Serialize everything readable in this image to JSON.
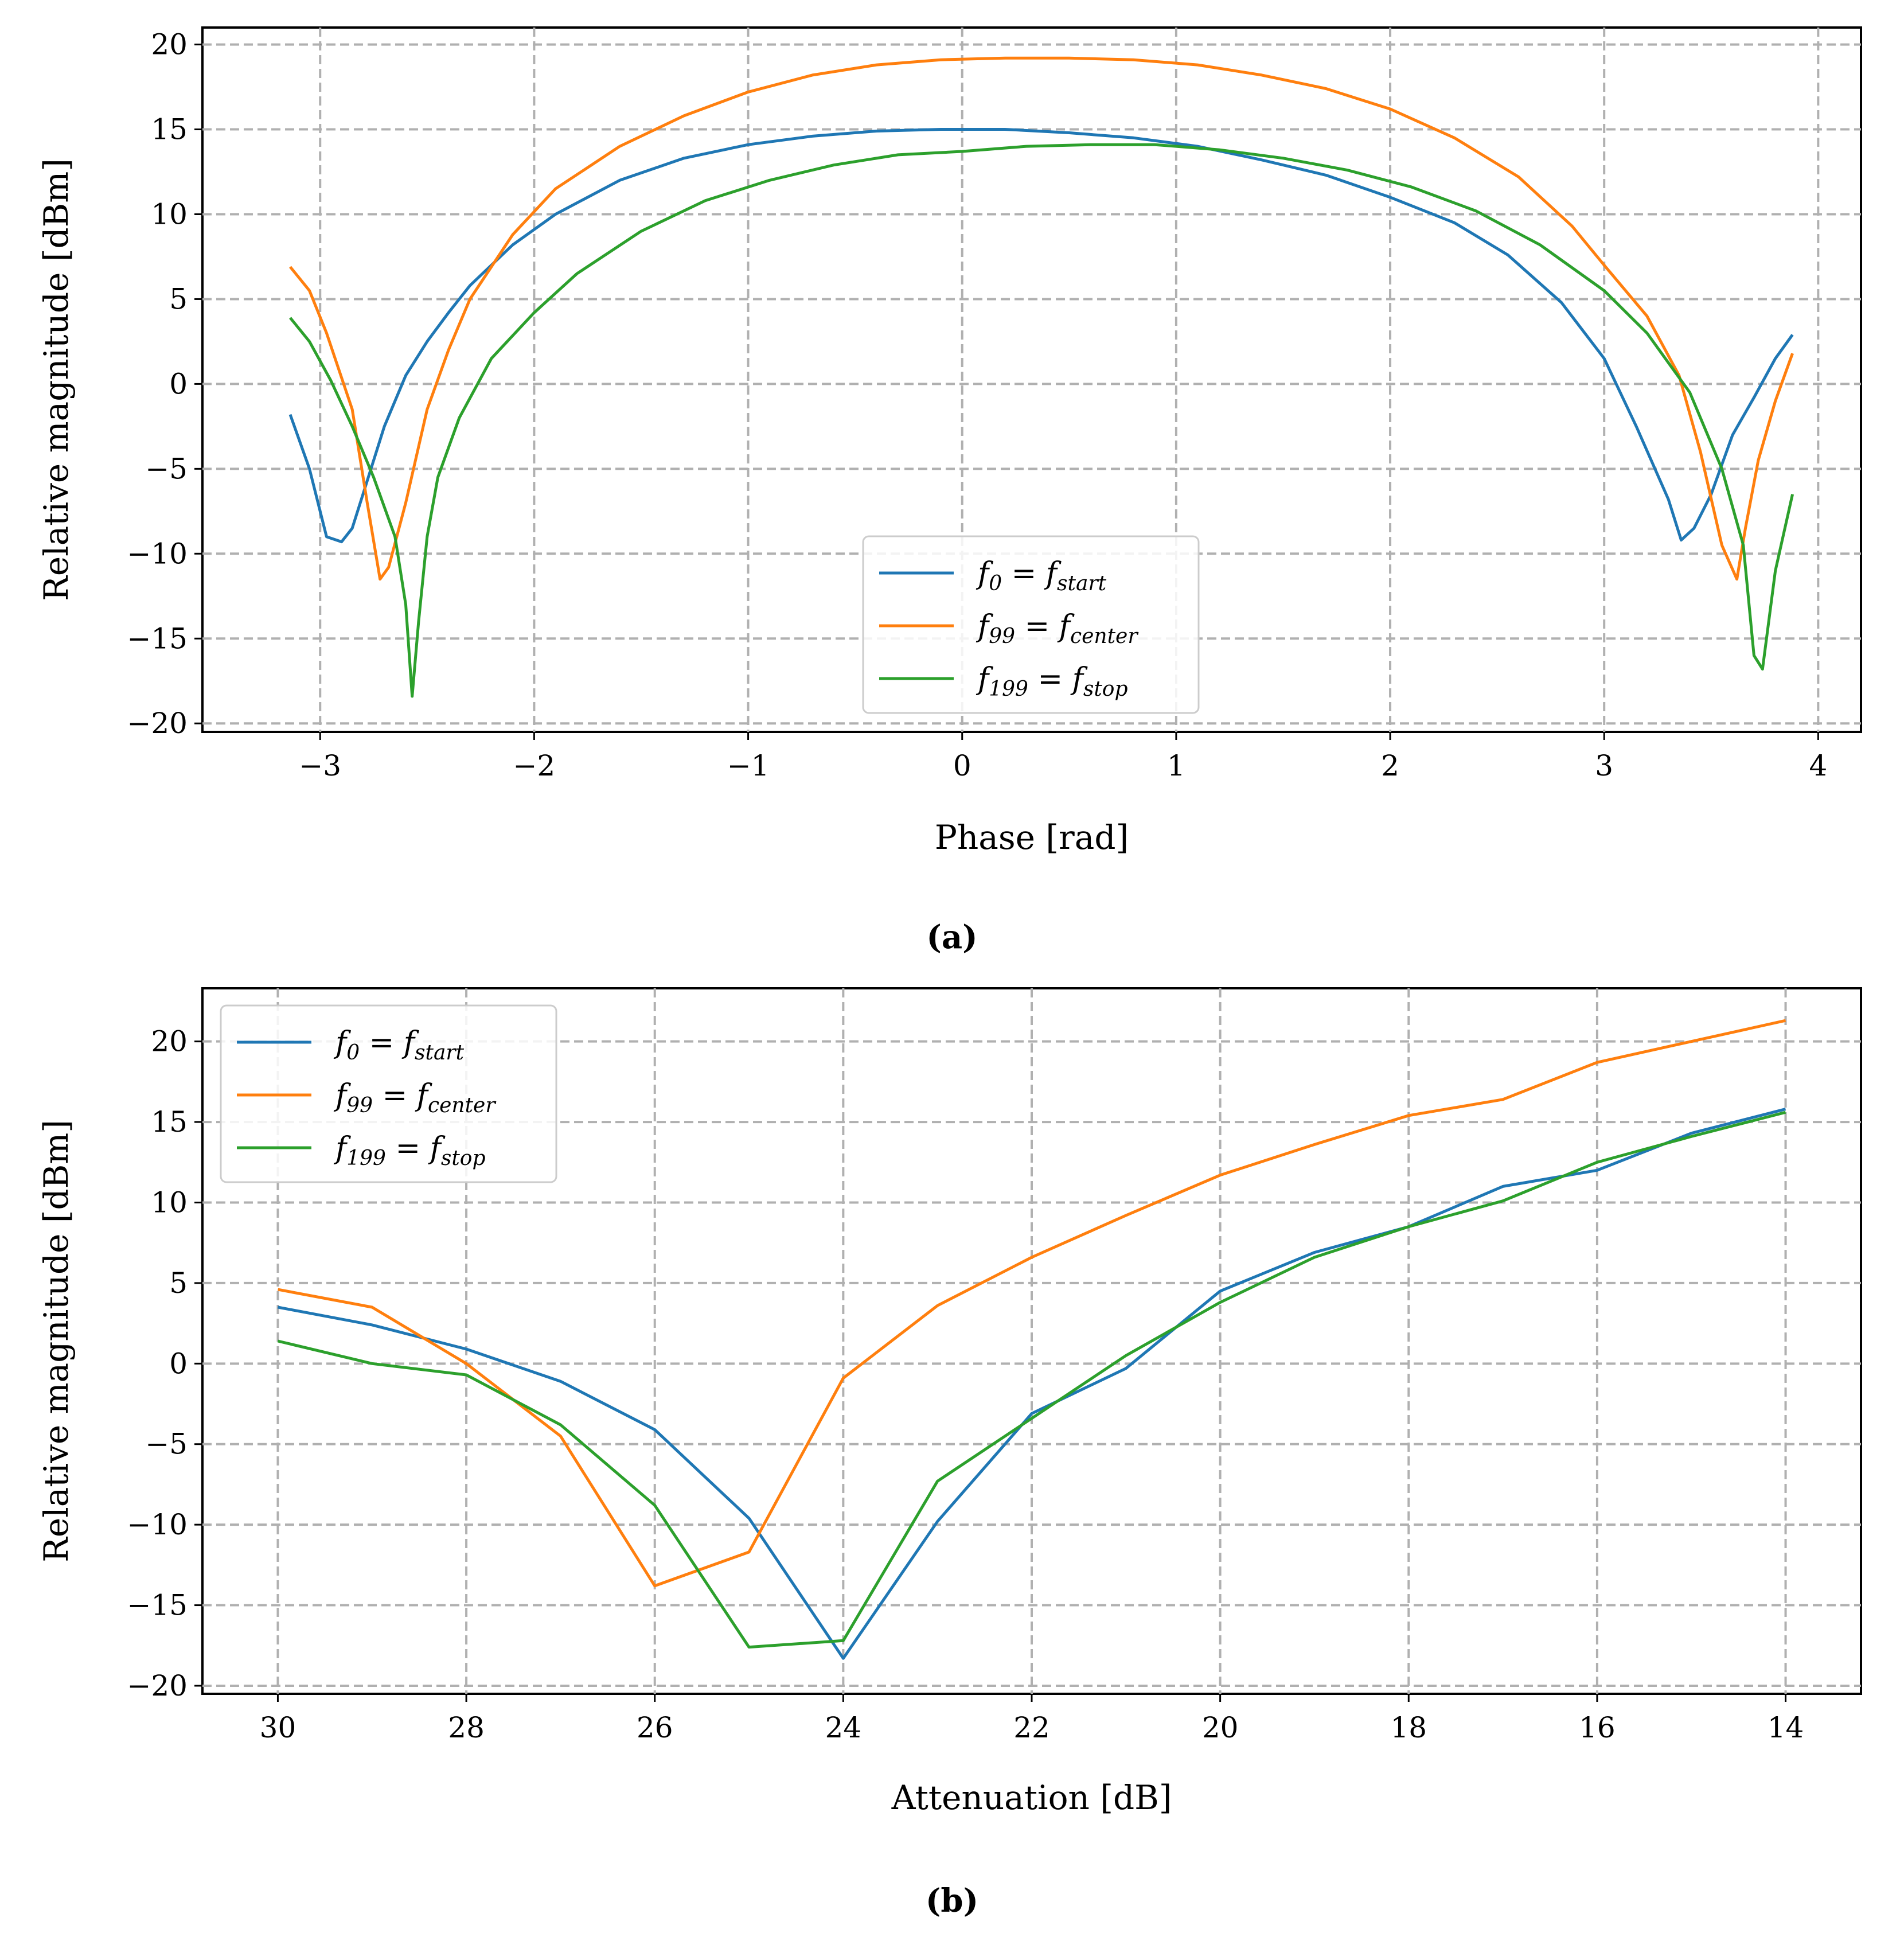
{
  "colors": {
    "f0": "#1f77b4",
    "f99": "#ff7f0e",
    "f199": "#2ca02c",
    "grid": "#b0b0b0"
  },
  "chart_data": [
    {
      "id": "a",
      "type": "line",
      "caption": "(a)",
      "xlabel": "Phase [rad]",
      "ylabel": "Relative magnitude [dBm]",
      "xlim": [
        -3.55,
        4.2
      ],
      "ylim": [
        -20.5,
        21
      ],
      "xticks": [
        -3,
        -2,
        -1,
        0,
        1,
        2,
        3,
        4
      ],
      "xtick_labels": [
        "−3",
        "−2",
        "−1",
        "0",
        "1",
        "2",
        "3",
        "4"
      ],
      "yticks": [
        -20,
        -15,
        -10,
        -5,
        0,
        5,
        10,
        15,
        20
      ],
      "ytick_labels": [
        "−20",
        "−15",
        "−10",
        "−5",
        "0",
        "5",
        "10",
        "15",
        "20"
      ],
      "grid": true,
      "legend_position": "lower-center",
      "series": [
        {
          "name": "f0 = fstart",
          "label_main": "f",
          "label_sub": "0",
          "label_eq": " = f",
          "label_sub2": "start",
          "color_key": "f0",
          "x": [
            -3.14,
            -3.05,
            -2.97,
            -2.9,
            -2.85,
            -2.8,
            -2.7,
            -2.6,
            -2.5,
            -2.4,
            -2.3,
            -2.1,
            -1.9,
            -1.6,
            -1.3,
            -1.0,
            -0.7,
            -0.4,
            -0.1,
            0.2,
            0.5,
            0.8,
            1.1,
            1.4,
            1.7,
            2.0,
            2.3,
            2.55,
            2.8,
            3.0,
            3.15,
            3.3,
            3.36,
            3.42,
            3.5,
            3.6,
            3.7,
            3.8,
            3.88
          ],
          "y": [
            -1.8,
            -5.0,
            -9.0,
            -9.3,
            -8.5,
            -6.5,
            -2.5,
            0.5,
            2.5,
            4.2,
            5.8,
            8.2,
            10.0,
            12.0,
            13.3,
            14.1,
            14.6,
            14.9,
            15.0,
            15.0,
            14.8,
            14.5,
            14.0,
            13.2,
            12.3,
            11.0,
            9.5,
            7.6,
            4.8,
            1.5,
            -2.5,
            -6.8,
            -9.2,
            -8.5,
            -6.5,
            -3.0,
            -0.8,
            1.5,
            2.9
          ]
        },
        {
          "name": "f99 = fcenter",
          "label_main": "f",
          "label_sub": "99",
          "label_eq": " = f",
          "label_sub2": "center",
          "color_key": "f99",
          "x": [
            -3.14,
            -3.05,
            -2.97,
            -2.85,
            -2.78,
            -2.72,
            -2.68,
            -2.6,
            -2.5,
            -2.4,
            -2.3,
            -2.1,
            -1.9,
            -1.6,
            -1.3,
            -1.0,
            -0.7,
            -0.4,
            -0.1,
            0.2,
            0.5,
            0.8,
            1.1,
            1.4,
            1.7,
            2.0,
            2.3,
            2.6,
            2.85,
            3.0,
            3.2,
            3.35,
            3.45,
            3.55,
            3.62,
            3.66,
            3.72,
            3.8,
            3.88
          ],
          "y": [
            6.9,
            5.5,
            3.0,
            -1.5,
            -7.0,
            -11.5,
            -10.8,
            -7.0,
            -1.5,
            2.0,
            5.0,
            8.8,
            11.5,
            14.0,
            15.8,
            17.2,
            18.2,
            18.8,
            19.1,
            19.2,
            19.2,
            19.1,
            18.8,
            18.2,
            17.4,
            16.2,
            14.5,
            12.2,
            9.3,
            7.0,
            4.0,
            0.5,
            -4.0,
            -9.5,
            -11.5,
            -8.5,
            -4.5,
            -1.0,
            1.8
          ]
        },
        {
          "name": "f199 = fstop",
          "label_main": "f",
          "label_sub": "199",
          "label_eq": " = f",
          "label_sub2": "stop",
          "color_key": "f199",
          "x": [
            -3.14,
            -3.05,
            -2.95,
            -2.85,
            -2.75,
            -2.65,
            -2.6,
            -2.57,
            -2.54,
            -2.5,
            -2.45,
            -2.35,
            -2.2,
            -2.0,
            -1.8,
            -1.5,
            -1.2,
            -0.9,
            -0.6,
            -0.3,
            0.0,
            0.3,
            0.6,
            0.9,
            1.2,
            1.5,
            1.8,
            2.1,
            2.4,
            2.7,
            3.0,
            3.2,
            3.4,
            3.55,
            3.65,
            3.7,
            3.74,
            3.8,
            3.88
          ],
          "y": [
            3.9,
            2.5,
            0.2,
            -2.5,
            -5.5,
            -9.0,
            -13.0,
            -18.4,
            -14.0,
            -9.0,
            -5.5,
            -2.0,
            1.5,
            4.2,
            6.5,
            9.0,
            10.8,
            12.0,
            12.9,
            13.5,
            13.7,
            14.0,
            14.1,
            14.1,
            13.8,
            13.3,
            12.6,
            11.6,
            10.2,
            8.2,
            5.5,
            3.0,
            -0.5,
            -5.0,
            -9.5,
            -16.0,
            -16.8,
            -11.0,
            -6.5
          ]
        }
      ]
    },
    {
      "id": "b",
      "type": "line",
      "caption": "(b)",
      "xlabel": "Attenuation [dB]",
      "ylabel": "Relative magnitude [dBm]",
      "xlim": [
        30.8,
        13.2
      ],
      "ylim": [
        -20.5,
        23.3
      ],
      "xticks": [
        30,
        28,
        26,
        24,
        22,
        20,
        18,
        16,
        14
      ],
      "xtick_labels": [
        "30",
        "28",
        "26",
        "24",
        "22",
        "20",
        "18",
        "16",
        "14"
      ],
      "yticks": [
        -20,
        -15,
        -10,
        -5,
        0,
        5,
        10,
        15,
        20
      ],
      "ytick_labels": [
        "−20",
        "−15",
        "−10",
        "−5",
        "0",
        "5",
        "10",
        "15",
        "20"
      ],
      "grid": true,
      "legend_position": "upper-left",
      "series": [
        {
          "name": "f0 = fstart",
          "label_main": "f",
          "label_sub": "0",
          "label_eq": " = f",
          "label_sub2": "start",
          "color_key": "f0",
          "x": [
            30,
            29,
            28,
            27,
            26,
            25,
            24,
            23,
            22,
            21,
            20,
            19,
            18,
            17,
            16,
            15,
            14
          ],
          "y": [
            3.5,
            2.4,
            0.9,
            -1.1,
            -4.1,
            -9.6,
            -18.3,
            -9.8,
            -3.1,
            -0.3,
            4.5,
            6.9,
            8.5,
            11.0,
            12.0,
            14.3,
            15.8
          ]
        },
        {
          "name": "f99 = fcenter",
          "label_main": "f",
          "label_sub": "99",
          "label_eq": " = f",
          "label_sub2": "center",
          "color_key": "f99",
          "x": [
            30,
            29,
            28,
            27,
            26,
            25,
            24,
            23,
            22,
            21,
            20,
            19,
            18,
            17,
            16,
            15,
            14
          ],
          "y": [
            4.6,
            3.5,
            0.0,
            -4.5,
            -13.8,
            -11.7,
            -0.9,
            3.6,
            6.6,
            9.2,
            11.7,
            13.6,
            15.4,
            16.4,
            18.7,
            20.0,
            21.3
          ]
        },
        {
          "name": "f199 = fstop",
          "label_main": "f",
          "label_sub": "199",
          "label_eq": " = f",
          "label_sub2": "stop",
          "color_key": "f199",
          "x": [
            30,
            29,
            28,
            27,
            26,
            25,
            24,
            23,
            22,
            21,
            20,
            19,
            18,
            17,
            16,
            15,
            14
          ],
          "y": [
            1.4,
            0.0,
            -0.7,
            -3.8,
            -8.8,
            -17.6,
            -17.2,
            -7.3,
            -3.4,
            0.5,
            3.8,
            6.6,
            8.5,
            10.1,
            12.5,
            14.1,
            15.6
          ]
        }
      ]
    }
  ]
}
